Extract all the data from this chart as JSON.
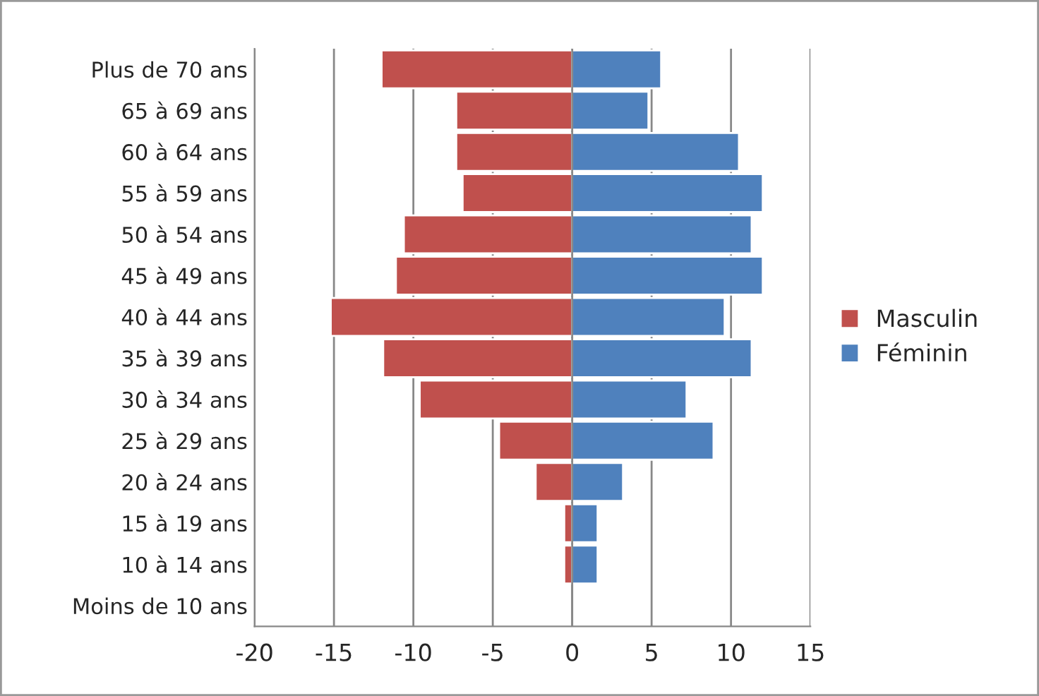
{
  "chart_data": {
    "type": "bar",
    "orientation": "horizontal",
    "categories": [
      "Plus de 70 ans",
      "65 à 69 ans",
      "60 à 64 ans",
      "55 à 59 ans",
      "50 à 54 ans",
      "45 à 49 ans",
      "40 à 44 ans",
      "35 à 39 ans",
      "30 à 34 ans",
      "25 à 29 ans",
      "20 à 24 ans",
      "15 à 19 ans",
      "10 à 14 ans",
      "Moins de 10 ans"
    ],
    "series": [
      {
        "name": "Masculin",
        "color": "#c0504d",
        "values": [
          -12.0,
          -7.3,
          -7.3,
          -6.9,
          -10.6,
          -11.1,
          -15.2,
          -11.9,
          -9.6,
          -4.6,
          -2.3,
          -0.5,
          -0.5,
          null
        ]
      },
      {
        "name": "Féminin",
        "color": "#4f81bd",
        "values": [
          5.6,
          4.8,
          10.5,
          12.0,
          11.3,
          12.0,
          9.6,
          11.3,
          7.2,
          8.9,
          3.2,
          1.6,
          1.6,
          null
        ]
      }
    ],
    "stacked": true,
    "xlim": [
      -20,
      15
    ],
    "xticks": [
      -20,
      -15,
      -10,
      -5,
      0,
      5,
      10,
      15
    ],
    "grid": "x",
    "legend": "right"
  }
}
